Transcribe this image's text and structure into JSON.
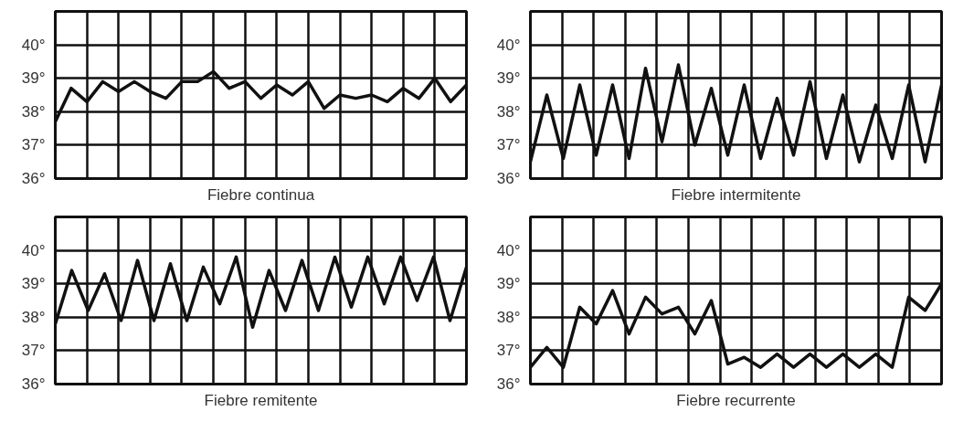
{
  "chart_data": [
    {
      "type": "line",
      "xlabel": "Fiebre continua",
      "categories": [
        null,
        null,
        null,
        null,
        null,
        null,
        null,
        null,
        null,
        null,
        null,
        null,
        null,
        null,
        null,
        null,
        null,
        null,
        null,
        null,
        null,
        null,
        null,
        null,
        null,
        null,
        null
      ],
      "series": [
        {
          "color": "#111111",
          "values": [
            37.7,
            38.7,
            38.3,
            38.9,
            38.6,
            38.9,
            38.6,
            38.4,
            38.9,
            38.9,
            39.2,
            38.7,
            38.9,
            38.4,
            38.8,
            38.5,
            38.9,
            38.1,
            38.5,
            38.4,
            38.5,
            38.3,
            38.7,
            38.4,
            39.0,
            38.3,
            38.8
          ]
        }
      ],
      "ylim": [
        36,
        41
      ],
      "yticks": [
        {
          "value": 36,
          "label": "36°"
        },
        {
          "value": 37,
          "label": "37°"
        },
        {
          "value": 38,
          "label": "38°"
        },
        {
          "value": 39,
          "label": "39°"
        },
        {
          "value": 40,
          "label": "40°"
        }
      ],
      "grid": true,
      "tick_labels": "y",
      "line_style": "solid"
    },
    {
      "type": "line",
      "xlabel": "Fiebre intermitente",
      "categories": [
        null,
        null,
        null,
        null,
        null,
        null,
        null,
        null,
        null,
        null,
        null,
        null,
        null,
        null,
        null,
        null,
        null,
        null,
        null,
        null,
        null,
        null,
        null,
        null,
        null,
        null
      ],
      "series": [
        {
          "color": "#111111",
          "values": [
            36.5,
            38.5,
            36.6,
            38.8,
            36.7,
            38.8,
            36.6,
            39.3,
            37.1,
            39.4,
            37.0,
            38.7,
            36.7,
            38.8,
            36.6,
            38.4,
            36.7,
            38.9,
            36.6,
            38.5,
            36.5,
            38.2,
            36.6,
            38.8,
            36.5,
            38.8
          ]
        }
      ],
      "ylim": [
        36,
        41
      ],
      "yticks": [
        {
          "value": 36,
          "label": "36°"
        },
        {
          "value": 37,
          "label": "37°"
        },
        {
          "value": 38,
          "label": "38°"
        },
        {
          "value": 39,
          "label": "39°"
        },
        {
          "value": 40,
          "label": "40°"
        }
      ],
      "grid": true,
      "tick_labels": "y",
      "line_style": "solid"
    },
    {
      "type": "line",
      "xlabel": "Fiebre remitente",
      "categories": [
        null,
        null,
        null,
        null,
        null,
        null,
        null,
        null,
        null,
        null,
        null,
        null,
        null,
        null,
        null,
        null,
        null,
        null,
        null,
        null,
        null,
        null,
        null,
        null,
        null,
        null
      ],
      "series": [
        {
          "color": "#111111",
          "values": [
            37.8,
            39.4,
            38.2,
            39.3,
            37.9,
            39.7,
            37.9,
            39.6,
            37.9,
            39.5,
            38.4,
            39.8,
            37.7,
            39.4,
            38.2,
            39.7,
            38.2,
            39.8,
            38.3,
            39.8,
            38.4,
            39.8,
            38.5,
            39.8,
            37.9,
            39.5
          ]
        }
      ],
      "ylim": [
        36,
        41
      ],
      "yticks": [
        {
          "value": 36,
          "label": "36°"
        },
        {
          "value": 37,
          "label": "37°"
        },
        {
          "value": 38,
          "label": "38°"
        },
        {
          "value": 39,
          "label": "39°"
        },
        {
          "value": 40,
          "label": "40°"
        }
      ],
      "grid": true,
      "tick_labels": "y",
      "line_style": "solid"
    },
    {
      "type": "line",
      "xlabel": "Fiebre recurrente",
      "categories": [
        null,
        null,
        null,
        null,
        null,
        null,
        null,
        null,
        null,
        null,
        null,
        null,
        null,
        null,
        null,
        null,
        null,
        null,
        null,
        null,
        null,
        null,
        null,
        null,
        null,
        null
      ],
      "series": [
        {
          "color": "#111111",
          "values": [
            36.5,
            37.1,
            36.5,
            38.3,
            37.8,
            38.8,
            37.5,
            38.6,
            38.1,
            38.3,
            37.5,
            38.5,
            36.6,
            36.8,
            36.5,
            36.9,
            36.5,
            36.9,
            36.5,
            36.9,
            36.5,
            36.9,
            36.5,
            38.6,
            38.2,
            39.0
          ]
        }
      ],
      "ylim": [
        36,
        41
      ],
      "yticks": [
        {
          "value": 36,
          "label": "36°"
        },
        {
          "value": 37,
          "label": "37°"
        },
        {
          "value": 38,
          "label": "38°"
        },
        {
          "value": 39,
          "label": "39°"
        },
        {
          "value": 40,
          "label": "40°"
        }
      ],
      "grid": true,
      "tick_labels": "y",
      "line_style": "solid"
    }
  ]
}
